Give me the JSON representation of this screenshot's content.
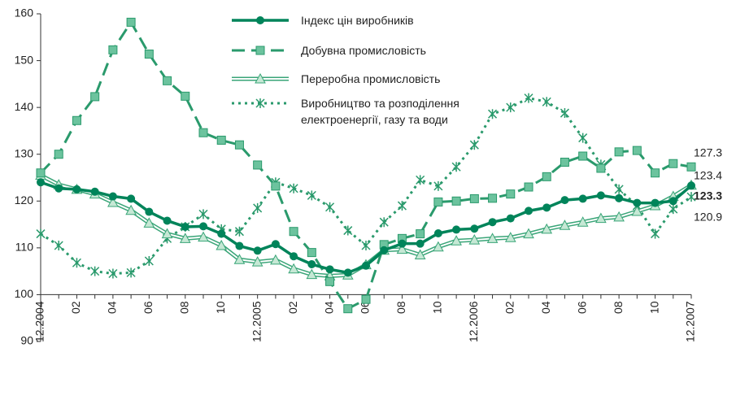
{
  "chart_data": {
    "type": "line",
    "categories": [
      "12.2004",
      null,
      "02",
      null,
      "04",
      null,
      "06",
      null,
      "08",
      null,
      "10",
      null,
      "12.2005",
      null,
      "02",
      null,
      "04",
      null,
      "06",
      null,
      "08",
      null,
      "10",
      null,
      "12.2006",
      null,
      "02",
      null,
      "04",
      null,
      "06",
      null,
      "08",
      null,
      "10",
      null,
      "12.2007"
    ],
    "series": [
      {
        "name": "Індекс цін виробників",
        "color": "#00845a",
        "style": "solid",
        "marker": "circle",
        "values": [
          124,
          122.7,
          122.5,
          122,
          121,
          120.5,
          117.7,
          115.8,
          114.5,
          114.6,
          113,
          110.4,
          109.4,
          110.8,
          108.2,
          106.5,
          105.4,
          104.7,
          106.2,
          109.5,
          110.9,
          110.9,
          113.1,
          113.9,
          114.1,
          115.5,
          116.3,
          117.9,
          118.6,
          120.2,
          120.5,
          121.2,
          120.6,
          119.6,
          119.6,
          120,
          123.3
        ]
      },
      {
        "name": "Добувна промисловість",
        "color": "#2a9a6c",
        "style": "dashed",
        "marker": "square",
        "values": [
          126,
          130,
          137.2,
          142.3,
          152.3,
          158.2,
          151.4,
          145.7,
          142.4,
          134.6,
          133,
          132,
          127.7,
          123.2,
          113.5,
          109,
          102.8,
          97,
          99,
          110.7,
          112,
          113,
          119.8,
          120,
          120.5,
          120.6,
          121.5,
          123,
          125.2,
          128.3,
          129.6,
          127,
          130.5,
          130.8,
          126,
          128,
          127.3
        ]
      },
      {
        "name": "Переробна промисловість",
        "color": "#3aa578",
        "style": "double",
        "marker": "triangle",
        "values": [
          125.5,
          123.5,
          122.5,
          121.5,
          119.7,
          118,
          115.3,
          113,
          112,
          112.3,
          110.5,
          107.5,
          107,
          107.4,
          105.5,
          104.3,
          104,
          104.2,
          106.4,
          109.5,
          109.7,
          108.5,
          110.2,
          111.5,
          111.7,
          112,
          112.2,
          113,
          114,
          114.8,
          115.5,
          116.3,
          116.6,
          117.8,
          119,
          121,
          123.4
        ]
      },
      {
        "name": "Виробництво та розподілення\nелектроенергії, газу та води",
        "color": "#2a9a6c",
        "style": "dotted",
        "marker": "star",
        "values": [
          113,
          110.5,
          106.8,
          105,
          104.5,
          104.7,
          107.2,
          112,
          114.5,
          117.2,
          114,
          113.5,
          118.5,
          124,
          122.7,
          121.2,
          118.7,
          113.7,
          110.5,
          115.5,
          119,
          124.5,
          123.2,
          127.3,
          132,
          138.6,
          140,
          142,
          141.2,
          138.8,
          133.5,
          127.8,
          122.5,
          119,
          113,
          118.3,
          120.9
        ]
      }
    ],
    "ylim": [
      90,
      160
    ],
    "yticks": [
      90,
      100,
      110,
      120,
      130,
      140,
      150,
      160
    ],
    "xaxis_crosses": 100
  }
}
